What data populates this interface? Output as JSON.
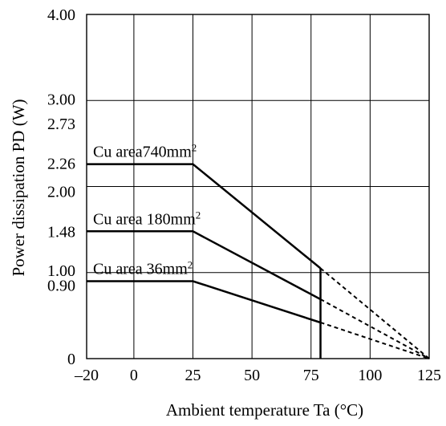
{
  "chart_data": {
    "type": "line",
    "xlabel": "Ambient temperature Ta (°C)",
    "ylabel": "Power dissipation PD (W)",
    "xlim": [
      -20,
      125
    ],
    "ylim": [
      0,
      4.0
    ],
    "x_ticks": [
      -20,
      0,
      25,
      50,
      75,
      100,
      125
    ],
    "x_tick_labels": [
      "–20",
      "0",
      "25",
      "50",
      "75",
      "100",
      "125"
    ],
    "y_ticks": [
      0,
      0.9,
      1.0,
      1.48,
      2.0,
      2.26,
      2.73,
      3.0,
      4.0
    ],
    "y_tick_labels": [
      "0",
      "0.90",
      "1.00",
      "1.48",
      "2.00",
      "2.26",
      "2.73",
      "3.00",
      "4.00"
    ],
    "x_grid": [
      0,
      25,
      50,
      75,
      100
    ],
    "y_grid": [
      1.0,
      2.0,
      3.0
    ],
    "grid": true,
    "marker_x": 79,
    "series": [
      {
        "name": "Cu area740mm²",
        "x": [
          -20,
          25,
          79
        ],
        "y": [
          2.26,
          2.26,
          1.05
        ],
        "dashed_to": [
          125,
          0
        ]
      },
      {
        "name": "Cu area 180mm²",
        "x": [
          -20,
          25,
          79
        ],
        "y": [
          1.48,
          1.48,
          0.69
        ],
        "dashed_to": [
          125,
          0
        ]
      },
      {
        "name": "Cu area 36mm²",
        "x": [
          -20,
          25,
          79
        ],
        "y": [
          0.9,
          0.9,
          0.42
        ],
        "dashed_to": [
          125,
          0
        ]
      }
    ]
  }
}
